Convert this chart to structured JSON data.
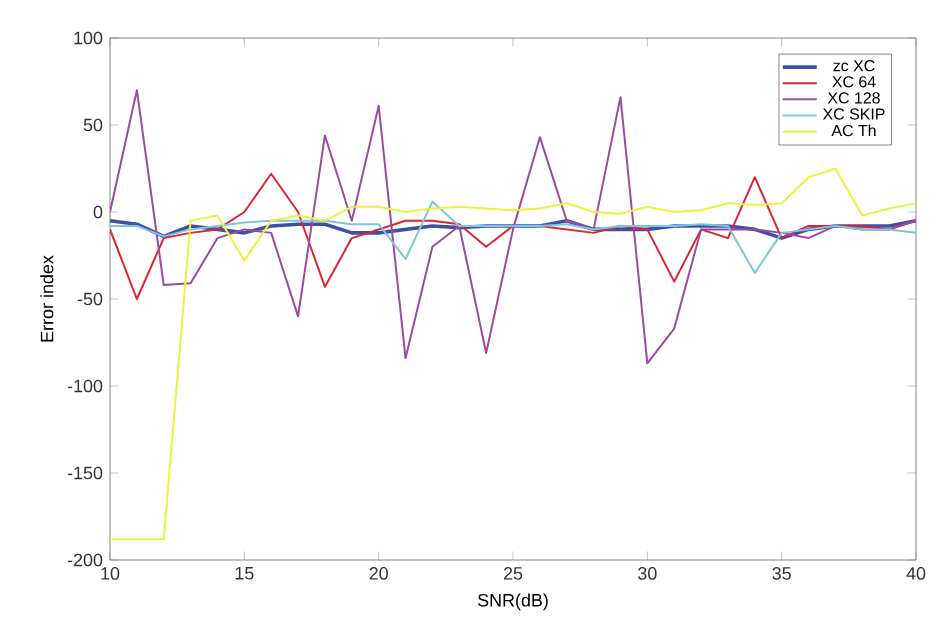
{
  "chart_data": {
    "type": "line",
    "xlabel": "SNR(dB)",
    "ylabel": "Error index",
    "x": [
      10,
      11,
      12,
      13,
      14,
      15,
      16,
      17,
      18,
      19,
      20,
      21,
      22,
      23,
      24,
      25,
      26,
      27,
      28,
      29,
      30,
      31,
      32,
      33,
      34,
      35,
      36,
      37,
      38,
      39,
      40
    ],
    "series": [
      {
        "name": "zc XC",
        "color": "#3f51a3",
        "values": [
          -5,
          -7,
          -14,
          -8,
          -10,
          -12,
          -8,
          -7,
          -7,
          -12,
          -12,
          -10,
          -8,
          -9,
          -8,
          -8,
          -8,
          -5,
          -10,
          -10,
          -10,
          -8,
          -8,
          -8,
          -10,
          -15,
          -10,
          -8,
          -8,
          -8,
          -5
        ]
      },
      {
        "name": "XC 64",
        "color": "#d9262f",
        "values": [
          -10,
          -50,
          -15,
          -12,
          -10,
          0,
          22,
          0,
          -43,
          -15,
          -10,
          -5,
          -5,
          -7,
          -20,
          -8,
          -8,
          -10,
          -12,
          -8,
          -10,
          -40,
          -10,
          -15,
          20,
          -15,
          -8,
          -8,
          -8,
          -10,
          -5
        ]
      },
      {
        "name": "XC 128",
        "color": "#9b4a9f",
        "values": [
          0,
          70,
          -42,
          -41,
          -15,
          -10,
          -12,
          -60,
          44,
          -5,
          61,
          -84,
          -20,
          -8,
          -81,
          -10,
          43,
          -5,
          -10,
          66,
          -87,
          -67,
          -10,
          -10,
          -10,
          -12,
          -15,
          -8,
          -10,
          -10,
          -5
        ]
      },
      {
        "name": "XC SKIP",
        "color": "#7fc4de",
        "values": [
          -8,
          -8,
          -14,
          -10,
          -8,
          -6,
          -5,
          -5,
          -5,
          -7,
          -7,
          -27,
          6,
          -8,
          -8,
          -8,
          -8,
          -7,
          -10,
          -8,
          -8,
          -8,
          -7,
          -8,
          -35,
          -12,
          -10,
          -8,
          -10,
          -10,
          -12
        ]
      },
      {
        "name": "AC Th",
        "color": "#f0f040",
        "values": [
          -188,
          -188,
          -188,
          -5,
          -2,
          -28,
          -5,
          -2,
          -5,
          3,
          3,
          0,
          2,
          3,
          2,
          1,
          2,
          5,
          0,
          -1,
          3,
          0,
          1,
          5,
          4,
          5,
          20,
          25,
          -2,
          2,
          5
        ]
      }
    ],
    "xlim": [
      10,
      40
    ],
    "ylim": [
      -200,
      100
    ],
    "xticks": [
      10,
      15,
      20,
      25,
      30,
      35,
      40
    ],
    "yticks": [
      -200,
      -150,
      -100,
      -50,
      0,
      50,
      100
    ],
    "legend": "top right",
    "grid": false,
    "marker": "none",
    "line_style": "solid"
  }
}
